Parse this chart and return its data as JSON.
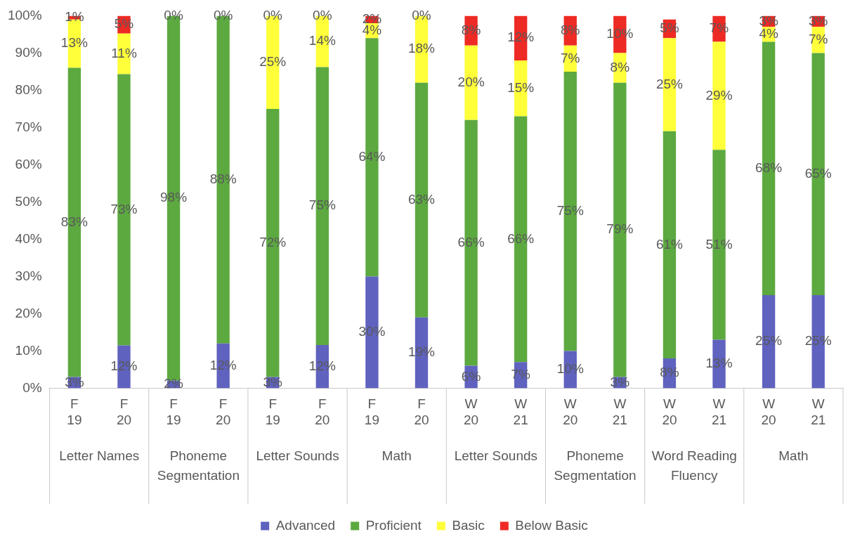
{
  "chart_data": {
    "type": "bar",
    "stacked": true,
    "legend": "bottom",
    "grid": false,
    "categories": [
      "F 19",
      "F 20",
      "F 19",
      "F 20",
      "F 19",
      "F 20",
      "F 19",
      "F 20",
      "W 20",
      "W 21",
      "W 20",
      "W 21",
      "W 20",
      "W 21",
      "W 20",
      "W 21"
    ],
    "annotations": [
      "Letter Names",
      "Phoneme Segmentation",
      "Letter Sounds",
      "Math",
      "Letter Sounds",
      "Phoneme Segmentation",
      "Word Reading Fluency",
      "Math"
    ],
    "ylim": [
      0,
      100
    ],
    "yticks": [
      {
        "value": 0,
        "label": "0%"
      },
      {
        "value": 10,
        "label": "10%"
      },
      {
        "value": 20,
        "label": "20%"
      },
      {
        "value": 30,
        "label": "30%"
      },
      {
        "value": 40,
        "label": "40%"
      },
      {
        "value": 50,
        "label": "50%"
      },
      {
        "value": 60,
        "label": "60%"
      },
      {
        "value": 70,
        "label": "70%"
      },
      {
        "value": 80,
        "label": "80%"
      },
      {
        "value": 90,
        "label": "90%"
      },
      {
        "value": 100,
        "label": "100%"
      }
    ],
    "series": [
      {
        "name": "Advanced",
        "color": "#5f62be",
        "values": [
          3,
          11.5,
          2,
          12,
          3,
          11.6,
          30,
          19,
          6,
          7,
          10,
          3,
          8,
          13,
          25,
          25
        ],
        "value_labels": [
          "3%",
          "12%",
          "2%",
          "12%",
          "3%",
          "12%",
          "30%",
          "19%",
          "6%",
          "7%",
          "10%",
          "3%",
          "8%",
          "13%",
          "25%",
          "25%"
        ]
      },
      {
        "name": "Proficient",
        "color": "#5ca940",
        "values": [
          83,
          72.8,
          98,
          88,
          72,
          74.6,
          64,
          63,
          66,
          66,
          75,
          79,
          61,
          51,
          68,
          65
        ],
        "value_labels": [
          "83%",
          "73%",
          "98%",
          "88%",
          "72%",
          "75%",
          "64%",
          "63%",
          "66%",
          "66%",
          "75%",
          "79%",
          "61%",
          "51%",
          "68%",
          "65%"
        ]
      },
      {
        "name": "Basic",
        "color": "#ffff3a",
        "values": [
          13,
          10.9,
          0,
          0,
          25,
          13.8,
          4,
          18,
          20,
          15,
          7,
          8,
          25,
          29,
          4,
          7
        ],
        "value_labels": [
          "13%",
          "11%",
          null,
          null,
          "25%",
          "14%",
          "4%",
          "18%",
          "20%",
          "15%",
          "7%",
          "8%",
          "25%",
          "29%",
          "4%",
          "7%"
        ]
      },
      {
        "name": "Below Basic",
        "color": "#ee2a24",
        "values": [
          1,
          4.8,
          0,
          0,
          0,
          0,
          2,
          0,
          8,
          12,
          8,
          10,
          5,
          7,
          3,
          3
        ],
        "value_labels": [
          "1%",
          "5%",
          "0%",
          "0%",
          "0%",
          "0%",
          "2%",
          "0%",
          "8%",
          "12%",
          "8%",
          "10%",
          "5%",
          "7%",
          "3%",
          "3%"
        ]
      }
    ]
  }
}
